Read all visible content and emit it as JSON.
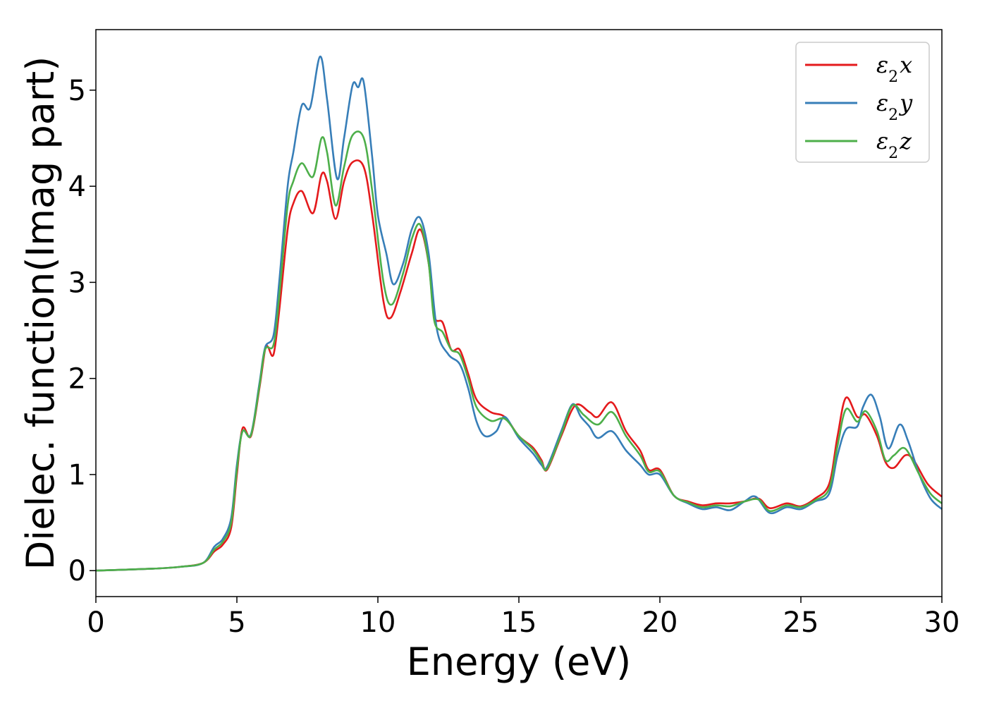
{
  "chart_data": {
    "type": "line",
    "title": "",
    "xlabel": "Energy (eV)",
    "ylabel": "Dielec. function(Imag part)",
    "xlim": [
      0,
      30
    ],
    "ylim": [
      -0.27,
      5.63
    ],
    "xticks": [
      0,
      5,
      10,
      15,
      20,
      25,
      30
    ],
    "yticks": [
      0,
      1,
      2,
      3,
      4,
      5
    ],
    "grid": false,
    "legend_position": "top-right",
    "series": [
      {
        "name": "ε2x",
        "legend_base": "ε",
        "legend_sub": "2",
        "legend_var": "x",
        "color": "#e41a1c",
        "points": [
          [
            0,
            0
          ],
          [
            2,
            0.02
          ],
          [
            3,
            0.04
          ],
          [
            3.8,
            0.08
          ],
          [
            4.2,
            0.2
          ],
          [
            4.5,
            0.27
          ],
          [
            4.8,
            0.45
          ],
          [
            5.0,
            1.0
          ],
          [
            5.2,
            1.48
          ],
          [
            5.5,
            1.4
          ],
          [
            5.8,
            1.9
          ],
          [
            6.0,
            2.3
          ],
          [
            6.1,
            2.33
          ],
          [
            6.3,
            2.25
          ],
          [
            6.5,
            2.7
          ],
          [
            6.8,
            3.55
          ],
          [
            7.0,
            3.82
          ],
          [
            7.3,
            3.95
          ],
          [
            7.7,
            3.72
          ],
          [
            8.0,
            4.12
          ],
          [
            8.2,
            4.05
          ],
          [
            8.5,
            3.66
          ],
          [
            8.8,
            4.05
          ],
          [
            9.1,
            4.25
          ],
          [
            9.5,
            4.2
          ],
          [
            9.8,
            3.7
          ],
          [
            10.2,
            2.8
          ],
          [
            10.45,
            2.63
          ],
          [
            10.8,
            2.9
          ],
          [
            11.2,
            3.3
          ],
          [
            11.5,
            3.55
          ],
          [
            11.8,
            3.2
          ],
          [
            12.0,
            2.65
          ],
          [
            12.3,
            2.58
          ],
          [
            12.6,
            2.3
          ],
          [
            12.9,
            2.3
          ],
          [
            13.2,
            2.05
          ],
          [
            13.5,
            1.78
          ],
          [
            14.0,
            1.65
          ],
          [
            14.5,
            1.6
          ],
          [
            15.0,
            1.4
          ],
          [
            15.5,
            1.28
          ],
          [
            15.8,
            1.15
          ],
          [
            16.0,
            1.05
          ],
          [
            16.5,
            1.4
          ],
          [
            17.0,
            1.72
          ],
          [
            17.5,
            1.65
          ],
          [
            17.8,
            1.6
          ],
          [
            18.3,
            1.75
          ],
          [
            18.8,
            1.45
          ],
          [
            19.3,
            1.25
          ],
          [
            19.6,
            1.05
          ],
          [
            20.0,
            1.05
          ],
          [
            20.5,
            0.78
          ],
          [
            21.0,
            0.72
          ],
          [
            21.5,
            0.68
          ],
          [
            22.0,
            0.7
          ],
          [
            22.5,
            0.7
          ],
          [
            23.0,
            0.72
          ],
          [
            23.5,
            0.75
          ],
          [
            23.9,
            0.65
          ],
          [
            24.5,
            0.7
          ],
          [
            25.0,
            0.67
          ],
          [
            25.5,
            0.75
          ],
          [
            26.0,
            0.9
          ],
          [
            26.3,
            1.4
          ],
          [
            26.6,
            1.8
          ],
          [
            27.0,
            1.6
          ],
          [
            27.3,
            1.62
          ],
          [
            27.7,
            1.4
          ],
          [
            28.0,
            1.13
          ],
          [
            28.3,
            1.07
          ],
          [
            28.7,
            1.2
          ],
          [
            29.0,
            1.15
          ],
          [
            29.5,
            0.9
          ],
          [
            30,
            0.77
          ]
        ]
      },
      {
        "name": "ε2y",
        "legend_base": "ε",
        "legend_sub": "2",
        "legend_var": "y",
        "color": "#377eb8",
        "points": [
          [
            0,
            0
          ],
          [
            2,
            0.02
          ],
          [
            3,
            0.04
          ],
          [
            3.8,
            0.08
          ],
          [
            4.2,
            0.25
          ],
          [
            4.5,
            0.33
          ],
          [
            4.8,
            0.55
          ],
          [
            5.0,
            1.1
          ],
          [
            5.2,
            1.45
          ],
          [
            5.5,
            1.42
          ],
          [
            5.8,
            1.95
          ],
          [
            6.0,
            2.32
          ],
          [
            6.3,
            2.45
          ],
          [
            6.5,
            3.0
          ],
          [
            6.8,
            4.0
          ],
          [
            7.0,
            4.35
          ],
          [
            7.3,
            4.84
          ],
          [
            7.6,
            4.82
          ],
          [
            7.95,
            5.35
          ],
          [
            8.2,
            4.9
          ],
          [
            8.55,
            4.08
          ],
          [
            8.8,
            4.5
          ],
          [
            9.1,
            5.05
          ],
          [
            9.3,
            5.03
          ],
          [
            9.5,
            5.08
          ],
          [
            9.8,
            4.3
          ],
          [
            10.0,
            3.7
          ],
          [
            10.3,
            3.3
          ],
          [
            10.55,
            2.98
          ],
          [
            10.9,
            3.2
          ],
          [
            11.2,
            3.55
          ],
          [
            11.5,
            3.67
          ],
          [
            11.8,
            3.3
          ],
          [
            12.1,
            2.5
          ],
          [
            12.5,
            2.25
          ],
          [
            12.9,
            2.15
          ],
          [
            13.2,
            1.9
          ],
          [
            13.5,
            1.55
          ],
          [
            13.8,
            1.4
          ],
          [
            14.2,
            1.45
          ],
          [
            14.5,
            1.6
          ],
          [
            15.0,
            1.38
          ],
          [
            15.5,
            1.22
          ],
          [
            15.8,
            1.1
          ],
          [
            16.0,
            1.08
          ],
          [
            16.5,
            1.45
          ],
          [
            16.9,
            1.73
          ],
          [
            17.2,
            1.6
          ],
          [
            17.5,
            1.5
          ],
          [
            17.8,
            1.38
          ],
          [
            18.3,
            1.45
          ],
          [
            18.8,
            1.25
          ],
          [
            19.3,
            1.1
          ],
          [
            19.6,
            1.0
          ],
          [
            20.0,
            1.0
          ],
          [
            20.5,
            0.78
          ],
          [
            21.0,
            0.7
          ],
          [
            21.5,
            0.64
          ],
          [
            22.0,
            0.66
          ],
          [
            22.5,
            0.63
          ],
          [
            23.0,
            0.72
          ],
          [
            23.4,
            0.77
          ],
          [
            23.9,
            0.6
          ],
          [
            24.5,
            0.66
          ],
          [
            25.0,
            0.64
          ],
          [
            25.5,
            0.72
          ],
          [
            26.0,
            0.8
          ],
          [
            26.3,
            1.2
          ],
          [
            26.6,
            1.47
          ],
          [
            27.0,
            1.5
          ],
          [
            27.2,
            1.7
          ],
          [
            27.5,
            1.83
          ],
          [
            27.8,
            1.6
          ],
          [
            28.1,
            1.27
          ],
          [
            28.5,
            1.52
          ],
          [
            28.8,
            1.35
          ],
          [
            29.2,
            1.0
          ],
          [
            29.6,
            0.75
          ],
          [
            30,
            0.64
          ]
        ]
      },
      {
        "name": "ε2z",
        "legend_base": "ε",
        "legend_sub": "2",
        "legend_var": "z",
        "color": "#4daf4a",
        "points": [
          [
            0,
            0
          ],
          [
            2,
            0.02
          ],
          [
            3,
            0.04
          ],
          [
            3.8,
            0.08
          ],
          [
            4.2,
            0.22
          ],
          [
            4.5,
            0.3
          ],
          [
            4.8,
            0.5
          ],
          [
            5.0,
            1.05
          ],
          [
            5.2,
            1.45
          ],
          [
            5.5,
            1.41
          ],
          [
            5.8,
            1.92
          ],
          [
            6.0,
            2.3
          ],
          [
            6.3,
            2.35
          ],
          [
            6.5,
            2.85
          ],
          [
            6.8,
            3.8
          ],
          [
            7.0,
            4.05
          ],
          [
            7.3,
            4.24
          ],
          [
            7.7,
            4.1
          ],
          [
            8.0,
            4.5
          ],
          [
            8.2,
            4.35
          ],
          [
            8.5,
            3.8
          ],
          [
            8.8,
            4.2
          ],
          [
            9.1,
            4.53
          ],
          [
            9.5,
            4.5
          ],
          [
            9.8,
            3.95
          ],
          [
            10.2,
            3.0
          ],
          [
            10.5,
            2.77
          ],
          [
            10.9,
            3.1
          ],
          [
            11.2,
            3.45
          ],
          [
            11.5,
            3.6
          ],
          [
            11.8,
            3.2
          ],
          [
            12.0,
            2.6
          ],
          [
            12.3,
            2.48
          ],
          [
            12.6,
            2.3
          ],
          [
            12.9,
            2.25
          ],
          [
            13.2,
            2.0
          ],
          [
            13.5,
            1.7
          ],
          [
            14.0,
            1.56
          ],
          [
            14.5,
            1.58
          ],
          [
            15.0,
            1.4
          ],
          [
            15.5,
            1.26
          ],
          [
            15.8,
            1.13
          ],
          [
            16.0,
            1.06
          ],
          [
            16.5,
            1.42
          ],
          [
            16.9,
            1.72
          ],
          [
            17.3,
            1.62
          ],
          [
            17.8,
            1.52
          ],
          [
            18.3,
            1.65
          ],
          [
            18.8,
            1.4
          ],
          [
            19.3,
            1.2
          ],
          [
            19.6,
            1.03
          ],
          [
            20.0,
            1.03
          ],
          [
            20.5,
            0.78
          ],
          [
            21.0,
            0.71
          ],
          [
            21.5,
            0.66
          ],
          [
            22.0,
            0.68
          ],
          [
            22.5,
            0.67
          ],
          [
            23.0,
            0.72
          ],
          [
            23.5,
            0.74
          ],
          [
            23.9,
            0.62
          ],
          [
            24.5,
            0.68
          ],
          [
            25.0,
            0.66
          ],
          [
            25.5,
            0.73
          ],
          [
            26.0,
            0.85
          ],
          [
            26.3,
            1.3
          ],
          [
            26.6,
            1.68
          ],
          [
            27.0,
            1.55
          ],
          [
            27.3,
            1.66
          ],
          [
            27.7,
            1.45
          ],
          [
            28.0,
            1.15
          ],
          [
            28.3,
            1.2
          ],
          [
            28.7,
            1.27
          ],
          [
            29.2,
            1.0
          ],
          [
            29.6,
            0.8
          ],
          [
            30,
            0.7
          ]
        ]
      }
    ]
  }
}
